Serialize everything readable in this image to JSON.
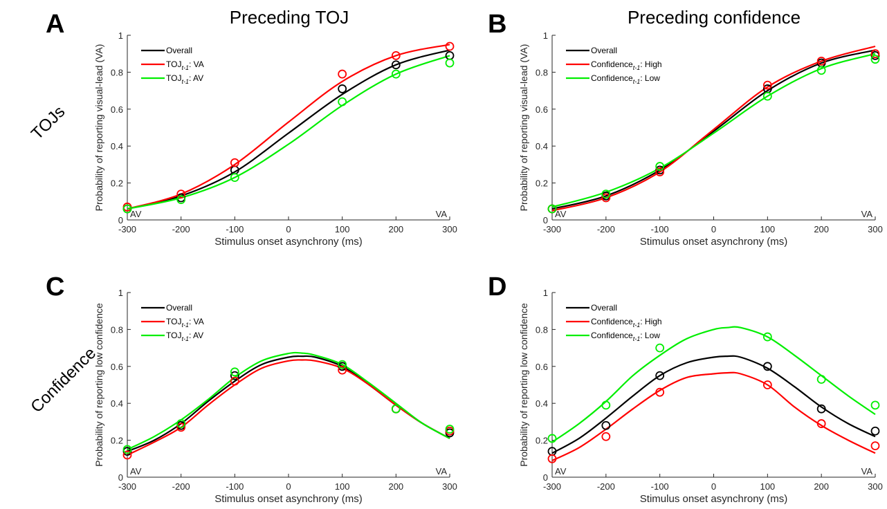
{
  "figure": {
    "column_titles": [
      "Preceding TOJ",
      "Preceding confidence"
    ],
    "row_labels": [
      "TOJs",
      "Confidence"
    ],
    "xlabel": "Stimulus onset asynchrony (ms)",
    "colors": {
      "Overall": "#000000",
      "red": "#ff0000",
      "green": "#00ee00"
    }
  },
  "chart_data": [
    {
      "type": "line",
      "panel": "A",
      "ylabel": "Probability of reporting visual-lead (VA)",
      "xlabel": "Stimulus onset asynchrony (ms)",
      "xlim": [
        -300,
        300
      ],
      "ylim": [
        0,
        1
      ],
      "xticks": [
        -300,
        -200,
        -100,
        0,
        100,
        200,
        300
      ],
      "yticks": [
        0,
        0.2,
        0.4,
        0.6,
        0.8,
        1
      ],
      "corner_labels": {
        "left": "AV",
        "right": "VA"
      },
      "legend_position": "top-left",
      "x": [
        -300,
        -200,
        -100,
        100,
        200,
        300
      ],
      "series": [
        {
          "legend": [
            "Overall",
            "",
            ""
          ],
          "color": "#000000",
          "points": [
            0.06,
            0.12,
            0.27,
            0.71,
            0.84,
            0.89
          ],
          "curve_x": [
            -300,
            -200,
            -100,
            0,
            100,
            200,
            300
          ],
          "curve_y": [
            0.06,
            0.13,
            0.26,
            0.47,
            0.68,
            0.84,
            0.92
          ]
        },
        {
          "legend": [
            "TOJ",
            "t-1",
            ": VA"
          ],
          "color": "#ff0000",
          "points": [
            0.07,
            0.14,
            0.31,
            0.79,
            0.89,
            0.94
          ],
          "curve_x": [
            -300,
            -200,
            -100,
            0,
            100,
            200,
            300
          ],
          "curve_y": [
            0.06,
            0.14,
            0.3,
            0.53,
            0.75,
            0.89,
            0.95
          ]
        },
        {
          "legend": [
            "TOJ",
            "t-1",
            ": AV"
          ],
          "color": "#00ee00",
          "points": [
            0.06,
            0.11,
            0.23,
            0.64,
            0.79,
            0.85
          ],
          "curve_x": [
            -300,
            -200,
            -100,
            0,
            100,
            200,
            300
          ],
          "curve_y": [
            0.06,
            0.12,
            0.23,
            0.41,
            0.62,
            0.79,
            0.89
          ]
        }
      ]
    },
    {
      "type": "line",
      "panel": "B",
      "ylabel": "Probability of reporting visual-lead (VA)",
      "xlabel": "Stimulus onset asynchrony (ms)",
      "xlim": [
        -300,
        300
      ],
      "ylim": [
        0,
        1
      ],
      "xticks": [
        -300,
        -200,
        -100,
        0,
        100,
        200,
        300
      ],
      "yticks": [
        0,
        0.2,
        0.4,
        0.6,
        0.8,
        1
      ],
      "corner_labels": {
        "left": "AV",
        "right": "VA"
      },
      "legend_position": "top-left",
      "x": [
        -300,
        -200,
        -100,
        100,
        200,
        300
      ],
      "series": [
        {
          "legend": [
            "Overall",
            "",
            ""
          ],
          "color": "#000000",
          "points": [
            0.06,
            0.13,
            0.27,
            0.71,
            0.85,
            0.89
          ],
          "curve_x": [
            -300,
            -200,
            -100,
            0,
            100,
            200,
            300
          ],
          "curve_y": [
            0.06,
            0.13,
            0.27,
            0.48,
            0.7,
            0.85,
            0.92
          ]
        },
        {
          "legend": [
            "Confidence",
            "t-1",
            ": High"
          ],
          "color": "#ff0000",
          "points": [
            0.06,
            0.12,
            0.26,
            0.73,
            0.86,
            0.9
          ],
          "curve_x": [
            -300,
            -200,
            -100,
            0,
            100,
            200,
            300
          ],
          "curve_y": [
            0.05,
            0.12,
            0.26,
            0.49,
            0.72,
            0.86,
            0.94
          ]
        },
        {
          "legend": [
            "Confidence",
            "t-1",
            ": Low"
          ],
          "color": "#00ee00",
          "points": [
            0.06,
            0.14,
            0.29,
            0.67,
            0.81,
            0.87
          ],
          "curve_x": [
            -300,
            -200,
            -100,
            0,
            100,
            200,
            300
          ],
          "curve_y": [
            0.07,
            0.15,
            0.28,
            0.47,
            0.67,
            0.82,
            0.9
          ]
        }
      ]
    },
    {
      "type": "line",
      "panel": "C",
      "ylabel": "Probability of reporting low confidence",
      "xlabel": "Stimulus onset asynchrony (ms)",
      "xlim": [
        -300,
        300
      ],
      "ylim": [
        0,
        1
      ],
      "xticks": [
        -300,
        -200,
        -100,
        0,
        100,
        200,
        300
      ],
      "yticks": [
        0,
        0.2,
        0.4,
        0.6,
        0.8,
        1
      ],
      "corner_labels": {
        "left": "AV",
        "right": "VA"
      },
      "legend_position": "top-left",
      "x": [
        -300,
        -200,
        -100,
        100,
        200,
        300
      ],
      "series": [
        {
          "legend": [
            "Overall",
            "",
            ""
          ],
          "color": "#000000",
          "points": [
            0.14,
            0.28,
            0.55,
            0.6,
            0.37,
            0.24
          ],
          "curve_x": [
            -300,
            -250,
            -200,
            -150,
            -100,
            -50,
            0,
            25,
            50,
            100,
            150,
            200,
            250,
            300
          ],
          "curve_y": [
            0.14,
            0.2,
            0.29,
            0.41,
            0.52,
            0.61,
            0.65,
            0.655,
            0.65,
            0.6,
            0.5,
            0.39,
            0.29,
            0.21
          ]
        },
        {
          "legend": [
            "TOJ",
            "t-1",
            ": VA"
          ],
          "color": "#ff0000",
          "points": [
            0.12,
            0.27,
            0.52,
            0.58,
            0.37,
            0.25
          ],
          "curve_x": [
            -300,
            -250,
            -200,
            -150,
            -100,
            -50,
            0,
            25,
            50,
            100,
            150,
            200,
            250,
            300
          ],
          "curve_y": [
            0.12,
            0.19,
            0.27,
            0.39,
            0.5,
            0.59,
            0.63,
            0.635,
            0.63,
            0.59,
            0.5,
            0.39,
            0.29,
            0.21
          ]
        },
        {
          "legend": [
            "TOJ",
            "t-1",
            ": AV"
          ],
          "color": "#00ee00",
          "points": [
            0.15,
            0.29,
            0.57,
            0.61,
            0.37,
            0.26
          ],
          "curve_x": [
            -300,
            -250,
            -200,
            -150,
            -100,
            -50,
            0,
            25,
            50,
            100,
            150,
            200,
            250,
            300
          ],
          "curve_y": [
            0.15,
            0.22,
            0.31,
            0.42,
            0.54,
            0.63,
            0.67,
            0.672,
            0.66,
            0.61,
            0.51,
            0.4,
            0.29,
            0.21
          ]
        }
      ]
    },
    {
      "type": "line",
      "panel": "D",
      "ylabel": "Probability of reporting low confidence",
      "xlabel": "Stimulus onset asynchrony (ms)",
      "xlim": [
        -300,
        300
      ],
      "ylim": [
        0,
        1
      ],
      "xticks": [
        -300,
        -200,
        -100,
        0,
        100,
        200,
        300
      ],
      "yticks": [
        0,
        0.2,
        0.4,
        0.6,
        0.8,
        1
      ],
      "corner_labels": {
        "left": "AV",
        "right": "VA"
      },
      "legend_position": "top-left",
      "x": [
        -300,
        -200,
        -100,
        100,
        200,
        300
      ],
      "series": [
        {
          "legend": [
            "Overall",
            "",
            ""
          ],
          "color": "#000000",
          "points": [
            0.14,
            0.28,
            0.55,
            0.6,
            0.37,
            0.25
          ],
          "curve_x": [
            -300,
            -250,
            -200,
            -150,
            -100,
            -50,
            0,
            25,
            50,
            100,
            150,
            200,
            250,
            300
          ],
          "curve_y": [
            0.13,
            0.21,
            0.32,
            0.44,
            0.55,
            0.62,
            0.65,
            0.655,
            0.65,
            0.59,
            0.49,
            0.38,
            0.29,
            0.22
          ]
        },
        {
          "legend": [
            "Confidence",
            "t-1",
            ": High"
          ],
          "color": "#ff0000",
          "points": [
            0.1,
            0.22,
            0.46,
            0.5,
            0.29,
            0.17
          ],
          "curve_x": [
            -300,
            -250,
            -200,
            -150,
            -100,
            -50,
            0,
            25,
            50,
            100,
            150,
            200,
            250,
            300
          ],
          "curve_y": [
            0.09,
            0.16,
            0.26,
            0.37,
            0.47,
            0.54,
            0.56,
            0.565,
            0.56,
            0.5,
            0.38,
            0.28,
            0.2,
            0.13
          ]
        },
        {
          "legend": [
            "Confidence",
            "t-1",
            ": Low"
          ],
          "color": "#00ee00",
          "points": [
            0.21,
            0.39,
            0.7,
            0.76,
            0.53,
            0.39
          ],
          "curve_x": [
            -300,
            -250,
            -200,
            -150,
            -100,
            -50,
            0,
            25,
            50,
            100,
            150,
            200,
            250,
            300
          ],
          "curve_y": [
            0.19,
            0.29,
            0.41,
            0.55,
            0.66,
            0.75,
            0.8,
            0.81,
            0.81,
            0.76,
            0.66,
            0.55,
            0.44,
            0.34
          ]
        }
      ]
    }
  ]
}
